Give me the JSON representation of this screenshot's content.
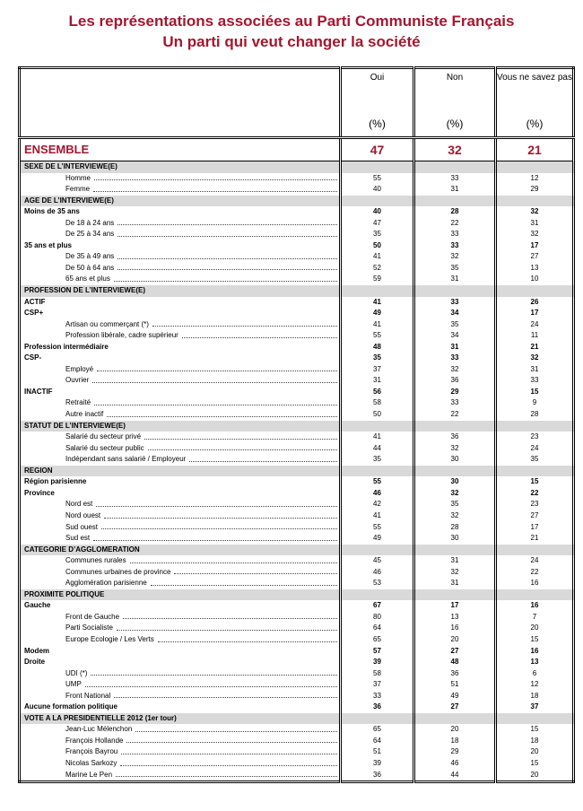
{
  "title_line1": "Les représentations associées au Parti Communiste Français",
  "title_line2": "Un parti qui veut changer la société",
  "columns": [
    {
      "label": "Oui",
      "unit": "(%)"
    },
    {
      "label": "Non",
      "unit": "(%)"
    },
    {
      "label": "Vous ne savez pas",
      "unit": "(%)"
    }
  ],
  "ensemble": {
    "label": "ENSEMBLE",
    "values": [
      "47",
      "32",
      "21"
    ]
  },
  "rows": [
    {
      "type": "section",
      "label": "SEXE DE L’INTERVIEWE(E)"
    },
    {
      "type": "item",
      "label": "Homme",
      "values": [
        "55",
        "33",
        "12"
      ]
    },
    {
      "type": "item",
      "label": "Femme",
      "values": [
        "40",
        "31",
        "29"
      ]
    },
    {
      "type": "section",
      "label": "AGE DE L’INTERVIEWE(E)"
    },
    {
      "type": "bold",
      "label": "Moins de 35 ans",
      "values": [
        "40",
        "28",
        "32"
      ]
    },
    {
      "type": "item",
      "label": "De 18 à 24 ans",
      "values": [
        "47",
        "22",
        "31"
      ]
    },
    {
      "type": "item",
      "label": "De 25 à 34 ans",
      "values": [
        "35",
        "33",
        "32"
      ]
    },
    {
      "type": "bold",
      "label": "35 ans et plus",
      "values": [
        "50",
        "33",
        "17"
      ]
    },
    {
      "type": "item",
      "label": "De 35 à 49 ans",
      "values": [
        "41",
        "32",
        "27"
      ]
    },
    {
      "type": "item",
      "label": "De 50 à 64 ans",
      "values": [
        "52",
        "35",
        "13"
      ]
    },
    {
      "type": "item",
      "label": "65 ans et plus",
      "values": [
        "59",
        "31",
        "10"
      ]
    },
    {
      "type": "section",
      "label": "PROFESSION DE L’INTERVIEWE(E)"
    },
    {
      "type": "bold",
      "label": "ACTIF",
      "values": [
        "41",
        "33",
        "26"
      ]
    },
    {
      "type": "bold",
      "label": "CSP+",
      "values": [
        "49",
        "34",
        "17"
      ]
    },
    {
      "type": "item",
      "label": "Artisan ou commerçant (*)",
      "values": [
        "41",
        "35",
        "24"
      ]
    },
    {
      "type": "item",
      "label": "Profession libérale, cadre supérieur",
      "values": [
        "55",
        "34",
        "11"
      ]
    },
    {
      "type": "bold",
      "label": "Profession intermédiaire",
      "values": [
        "48",
        "31",
        "21"
      ]
    },
    {
      "type": "bold",
      "label": "CSP-",
      "values": [
        "35",
        "33",
        "32"
      ]
    },
    {
      "type": "item",
      "label": "Employé",
      "values": [
        "37",
        "32",
        "31"
      ]
    },
    {
      "type": "item",
      "label": "Ouvrier",
      "values": [
        "31",
        "36",
        "33"
      ]
    },
    {
      "type": "bold",
      "label": "INACTIF",
      "values": [
        "56",
        "29",
        "15"
      ]
    },
    {
      "type": "item",
      "label": "Retraité",
      "values": [
        "58",
        "33",
        "9"
      ]
    },
    {
      "type": "item",
      "label": "Autre inactif",
      "values": [
        "50",
        "22",
        "28"
      ]
    },
    {
      "type": "section",
      "label": "STATUT DE L’INTERVIEWE(E)"
    },
    {
      "type": "item",
      "label": "Salarié du secteur privé",
      "values": [
        "41",
        "36",
        "23"
      ]
    },
    {
      "type": "item",
      "label": "Salarié du secteur public",
      "values": [
        "44",
        "32",
        "24"
      ]
    },
    {
      "type": "item",
      "label": "Indépendant sans salarié / Employeur",
      "values": [
        "35",
        "30",
        "35"
      ]
    },
    {
      "type": "section",
      "label": "REGION"
    },
    {
      "type": "bold",
      "label": "Région parisienne",
      "values": [
        "55",
        "30",
        "15"
      ]
    },
    {
      "type": "bold",
      "label": "Province",
      "values": [
        "46",
        "32",
        "22"
      ]
    },
    {
      "type": "item",
      "label": "Nord est",
      "values": [
        "42",
        "35",
        "23"
      ]
    },
    {
      "type": "item",
      "label": "Nord ouest",
      "values": [
        "41",
        "32",
        "27"
      ]
    },
    {
      "type": "item",
      "label": "Sud ouest",
      "values": [
        "55",
        "28",
        "17"
      ]
    },
    {
      "type": "item",
      "label": "Sud est",
      "values": [
        "49",
        "30",
        "21"
      ]
    },
    {
      "type": "section",
      "label": "CATEGORIE D’AGGLOMERATION"
    },
    {
      "type": "item",
      "label": "Communes rurales",
      "values": [
        "45",
        "31",
        "24"
      ]
    },
    {
      "type": "item",
      "label": "Communes urbaines de province",
      "values": [
        "46",
        "32",
        "22"
      ]
    },
    {
      "type": "item",
      "label": "Agglomération parisienne",
      "values": [
        "53",
        "31",
        "16"
      ]
    },
    {
      "type": "section",
      "label": "PROXIMITE POLITIQUE"
    },
    {
      "type": "bold",
      "label": "Gauche",
      "values": [
        "67",
        "17",
        "16"
      ]
    },
    {
      "type": "item",
      "label": "Front de Gauche",
      "values": [
        "80",
        "13",
        "7"
      ]
    },
    {
      "type": "item",
      "label": "Parti Socialiste",
      "values": [
        "64",
        "16",
        "20"
      ]
    },
    {
      "type": "item",
      "label": "Europe Ecologie / Les Verts",
      "values": [
        "65",
        "20",
        "15"
      ]
    },
    {
      "type": "bold",
      "label": "Modem",
      "values": [
        "57",
        "27",
        "16"
      ]
    },
    {
      "type": "bold",
      "label": "Droite",
      "values": [
        "39",
        "48",
        "13"
      ]
    },
    {
      "type": "item",
      "label": "UDI (*)",
      "values": [
        "58",
        "36",
        "6"
      ]
    },
    {
      "type": "item",
      "label": "UMP",
      "values": [
        "37",
        "51",
        "12"
      ]
    },
    {
      "type": "item",
      "label": "Front National",
      "values": [
        "33",
        "49",
        "18"
      ]
    },
    {
      "type": "bold",
      "label": "Aucune formation politique",
      "values": [
        "36",
        "27",
        "37"
      ]
    },
    {
      "type": "section",
      "label": "VOTE A LA PRESIDENTIELLE 2012 (1er tour)"
    },
    {
      "type": "item",
      "label": "Jean-Luc Mélenchon",
      "values": [
        "65",
        "20",
        "15"
      ]
    },
    {
      "type": "item",
      "label": "François Hollande",
      "values": [
        "64",
        "18",
        "18"
      ]
    },
    {
      "type": "item",
      "label": "François Bayrou",
      "values": [
        "51",
        "29",
        "20"
      ]
    },
    {
      "type": "item",
      "label": "Nicolas Sarkozy",
      "values": [
        "39",
        "46",
        "15"
      ]
    },
    {
      "type": "item",
      "label": "Marine Le Pen",
      "values": [
        "36",
        "44",
        "20"
      ]
    }
  ]
}
